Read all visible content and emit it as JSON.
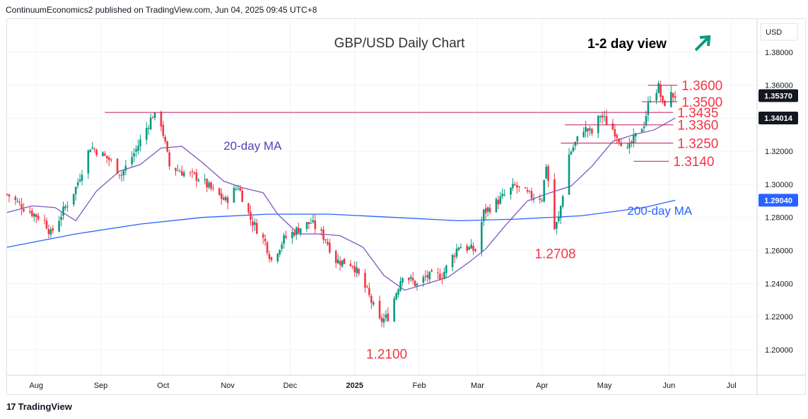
{
  "header": {
    "published_text": "ContinuumEconomics2 published on TradingView.com, Jun 04, 2025 09:45 UTC+8"
  },
  "footer": {
    "logo_text": "TradingView",
    "logo_mark": "17"
  },
  "chart_data": {
    "type": "candlestick",
    "title": "GBP/USD Daily Chart",
    "view_label": "1-2 day view",
    "view_arrow": "up-right",
    "currency": "USD",
    "ylim": [
      1.185,
      1.4
    ],
    "y_ticks": [
      "1.38000",
      "1.36000",
      "1.34000",
      "1.32000",
      "1.30000",
      "1.28000",
      "1.26000",
      "1.24000",
      "1.22000",
      "1.20000"
    ],
    "x_ticks": [
      "Aug",
      "Sep",
      "Oct",
      "Nov",
      "Dec",
      "2025",
      "Feb",
      "Mar",
      "Apr",
      "May",
      "Jun",
      "Jul"
    ],
    "x_tick_dates": [
      "2024-08-01",
      "2024-09-01",
      "2024-10-01",
      "2024-11-01",
      "2024-12-01",
      "2025-01-01",
      "2025-02-01",
      "2025-03-01",
      "2025-04-01",
      "2025-05-01",
      "2025-06-01",
      "2025-07-01"
    ],
    "xlim": [
      "2024-07-18",
      "2025-07-13"
    ],
    "price_badges": [
      {
        "value": "1.35370",
        "color": "#131722",
        "text_color": "#ffffff"
      },
      {
        "value": "1.34014",
        "color": "#131722",
        "text_color": "#ffffff"
      },
      {
        "value": "1.29040",
        "color": "#2962ff",
        "text_color": "#ffffff"
      }
    ],
    "levels": [
      {
        "label": "1.3600",
        "value": 1.36,
        "from": "2025-05-22",
        "to": "2025-06-05"
      },
      {
        "label": "1.3500",
        "value": 1.35,
        "from": "2025-05-19",
        "to": "2025-06-05"
      },
      {
        "label": "1.3435",
        "value": 1.3435,
        "from": "2024-09-03",
        "to": "2025-06-03"
      },
      {
        "label": "1.3360",
        "value": 1.336,
        "from": "2025-04-12",
        "to": "2025-06-03"
      },
      {
        "label": "1.3250",
        "value": 1.325,
        "from": "2025-04-10",
        "to": "2025-06-03"
      },
      {
        "label": "1.3140",
        "value": 1.314,
        "from": "2025-05-15",
        "to": "2025-06-01"
      }
    ],
    "annotations": [
      {
        "text": "1.2708",
        "date": "2025-04-04",
        "value": 1.2708,
        "position": "below"
      },
      {
        "text": "1.2100",
        "date": "2025-01-13",
        "value": 1.21,
        "position": "below"
      }
    ],
    "ma_labels": [
      {
        "text": "20-day MA",
        "date": "2024-10-30",
        "value": 1.321,
        "color": "#5b3fb6"
      },
      {
        "text": "200-day MA",
        "date": "2025-05-12",
        "value": 1.2815,
        "color": "#2962ff"
      }
    ],
    "colors": {
      "up": "#089981",
      "down": "#f23645",
      "ma20": "#7e57c2",
      "ma200": "#2962ff",
      "level": "#c2185b",
      "label": "#f23645"
    },
    "price_path": [
      [
        "2024-07-18",
        1.294
      ],
      [
        "2024-07-26",
        1.286
      ],
      [
        "2024-08-05",
        1.278
      ],
      [
        "2024-08-08",
        1.27
      ],
      [
        "2024-08-14",
        1.284
      ],
      [
        "2024-08-20",
        1.298
      ],
      [
        "2024-08-27",
        1.323
      ],
      [
        "2024-09-05",
        1.315
      ],
      [
        "2024-09-11",
        1.306
      ],
      [
        "2024-09-18",
        1.321
      ],
      [
        "2024-09-26",
        1.342
      ],
      [
        "2024-09-30",
        1.337
      ],
      [
        "2024-10-04",
        1.311
      ],
      [
        "2024-10-11",
        1.307
      ],
      [
        "2024-10-18",
        1.304
      ],
      [
        "2024-10-25",
        1.296
      ],
      [
        "2024-10-31",
        1.29
      ],
      [
        "2024-11-06",
        1.299
      ],
      [
        "2024-11-12",
        1.279
      ],
      [
        "2024-11-19",
        1.265
      ],
      [
        "2024-11-22",
        1.254
      ],
      [
        "2024-11-28",
        1.267
      ],
      [
        "2024-12-06",
        1.274
      ],
      [
        "2024-12-11",
        1.277
      ],
      [
        "2024-12-18",
        1.267
      ],
      [
        "2024-12-23",
        1.254
      ],
      [
        "2024-12-31",
        1.252
      ],
      [
        "2025-01-07",
        1.235
      ],
      [
        "2025-01-13",
        1.217
      ],
      [
        "2025-01-17",
        1.22
      ],
      [
        "2025-01-24",
        1.246
      ],
      [
        "2025-01-31",
        1.239
      ],
      [
        "2025-02-04",
        1.244
      ],
      [
        "2025-02-12",
        1.245
      ],
      [
        "2025-02-20",
        1.263
      ],
      [
        "2025-02-28",
        1.26
      ],
      [
        "2025-03-04",
        1.283
      ],
      [
        "2025-03-11",
        1.29
      ],
      [
        "2025-03-19",
        1.299
      ],
      [
        "2025-03-26",
        1.293
      ],
      [
        "2025-04-01",
        1.292
      ],
      [
        "2025-04-03",
        1.312
      ],
      [
        "2025-04-07",
        1.273
      ],
      [
        "2025-04-09",
        1.279
      ],
      [
        "2025-04-14",
        1.318
      ],
      [
        "2025-04-21",
        1.334
      ],
      [
        "2025-04-25",
        1.331
      ],
      [
        "2025-04-29",
        1.342
      ],
      [
        "2025-05-06",
        1.332
      ],
      [
        "2025-05-12",
        1.32
      ],
      [
        "2025-05-15",
        1.327
      ],
      [
        "2025-05-20",
        1.337
      ],
      [
        "2025-05-23",
        1.353
      ],
      [
        "2025-05-27",
        1.359
      ],
      [
        "2025-05-29",
        1.348
      ],
      [
        "2025-06-02",
        1.354
      ],
      [
        "2025-06-04",
        1.3537
      ]
    ],
    "ma20_path": [
      [
        "2024-07-18",
        1.283
      ],
      [
        "2024-07-30",
        1.287
      ],
      [
        "2024-08-10",
        1.286
      ],
      [
        "2024-08-20",
        1.278
      ],
      [
        "2024-08-30",
        1.296
      ],
      [
        "2024-09-10",
        1.308
      ],
      [
        "2024-09-20",
        1.312
      ],
      [
        "2024-09-30",
        1.322
      ],
      [
        "2024-10-10",
        1.323
      ],
      [
        "2024-10-20",
        1.313
      ],
      [
        "2024-10-30",
        1.302
      ],
      [
        "2024-11-08",
        1.298
      ],
      [
        "2024-11-18",
        1.295
      ],
      [
        "2024-11-25",
        1.282
      ],
      [
        "2024-12-05",
        1.27
      ],
      [
        "2024-12-15",
        1.27
      ],
      [
        "2024-12-25",
        1.269
      ],
      [
        "2025-01-05",
        1.262
      ],
      [
        "2025-01-15",
        1.245
      ],
      [
        "2025-01-25",
        1.236
      ],
      [
        "2025-02-05",
        1.24
      ],
      [
        "2025-02-15",
        1.244
      ],
      [
        "2025-02-25",
        1.253
      ],
      [
        "2025-03-05",
        1.261
      ],
      [
        "2025-03-15",
        1.276
      ],
      [
        "2025-03-25",
        1.29
      ],
      [
        "2025-04-05",
        1.295
      ],
      [
        "2025-04-15",
        1.299
      ],
      [
        "2025-04-25",
        1.311
      ],
      [
        "2025-05-05",
        1.326
      ],
      [
        "2025-05-15",
        1.33
      ],
      [
        "2025-05-25",
        1.333
      ],
      [
        "2025-06-04",
        1.3401
      ]
    ],
    "ma200_path": [
      [
        "2024-07-18",
        1.262
      ],
      [
        "2024-08-20",
        1.27
      ],
      [
        "2024-09-20",
        1.276
      ],
      [
        "2024-10-20",
        1.28
      ],
      [
        "2024-11-20",
        1.282
      ],
      [
        "2024-12-20",
        1.282
      ],
      [
        "2025-01-20",
        1.28
      ],
      [
        "2025-02-20",
        1.278
      ],
      [
        "2025-03-20",
        1.279
      ],
      [
        "2025-04-20",
        1.281
      ],
      [
        "2025-05-20",
        1.286
      ],
      [
        "2025-06-04",
        1.2904
      ]
    ]
  }
}
